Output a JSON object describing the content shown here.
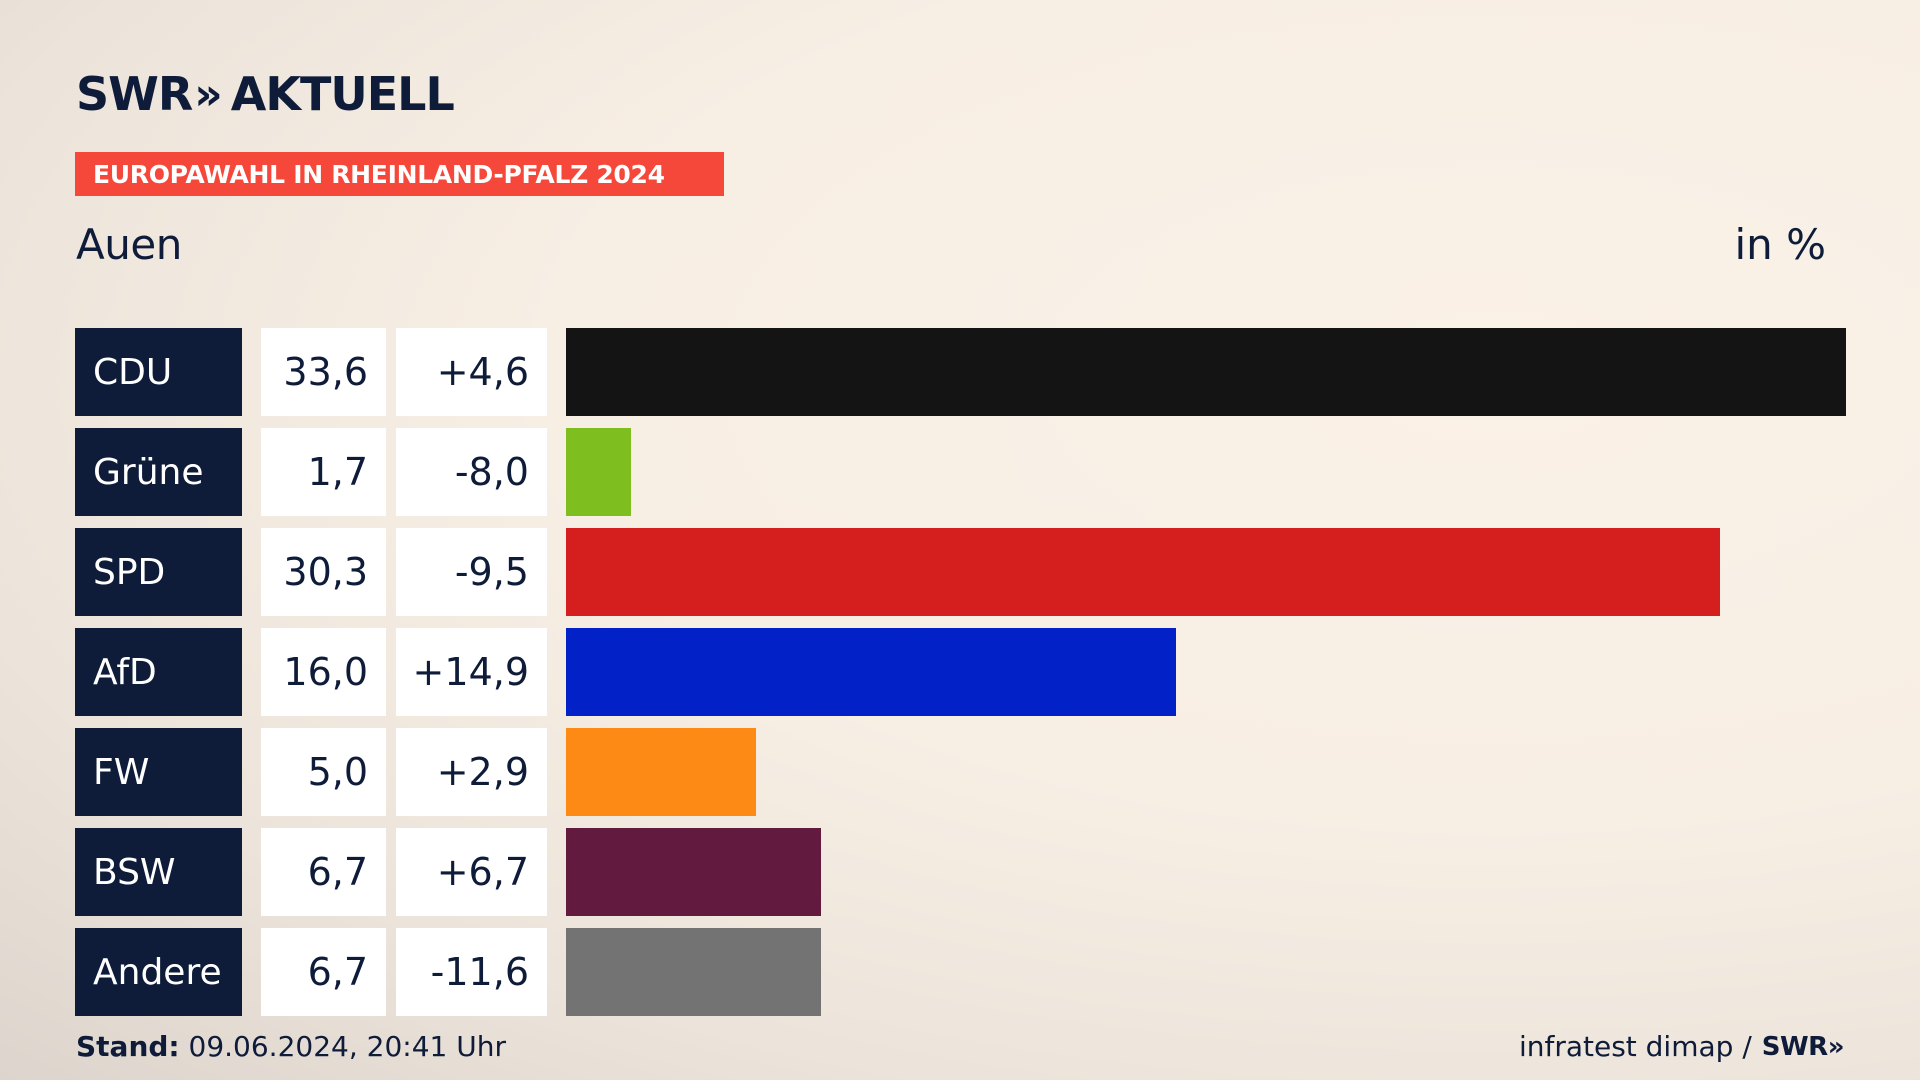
{
  "header": {
    "brand": "SWR",
    "brand_chevron": "»",
    "product": "AKTUELL",
    "banner": "EUROPAWAHL IN RHEINLAND-PFALZ 2024",
    "subtitle": "Auen",
    "unit": "in %"
  },
  "colors": {
    "banner": "#f5483a",
    "party_box": "#0e1c3a"
  },
  "chart_data": {
    "type": "bar",
    "orientation": "horizontal",
    "title": "EUROPAWAHL IN RHEINLAND-PFALZ 2024",
    "subtitle": "Auen",
    "unit": "in %",
    "categories": [
      "CDU",
      "Grüne",
      "SPD",
      "AfD",
      "FW",
      "BSW",
      "Andere"
    ],
    "values": [
      33.6,
      1.7,
      30.3,
      16.0,
      5.0,
      6.7,
      6.7
    ],
    "value_labels": [
      "33,6",
      "1,7",
      "30,3",
      "16,0",
      "5,0",
      "6,7",
      "6,7"
    ],
    "diff_labels": [
      "+4,6",
      "-8,0",
      "-9,5",
      "+14,9",
      "+2,9",
      "+6,7",
      "-11,6"
    ],
    "colors": [
      "#141414",
      "#7ebe1e",
      "#d51f1f",
      "#0222c7",
      "#fc8a14",
      "#631a3f",
      "#737373"
    ],
    "xlim": [
      0,
      33.6
    ]
  },
  "footer": {
    "stand_label": "Stand:",
    "stand_value": " 09.06.2024, 20:41 Uhr",
    "source": "infratest dimap /",
    "source_brand": "SWR»"
  }
}
